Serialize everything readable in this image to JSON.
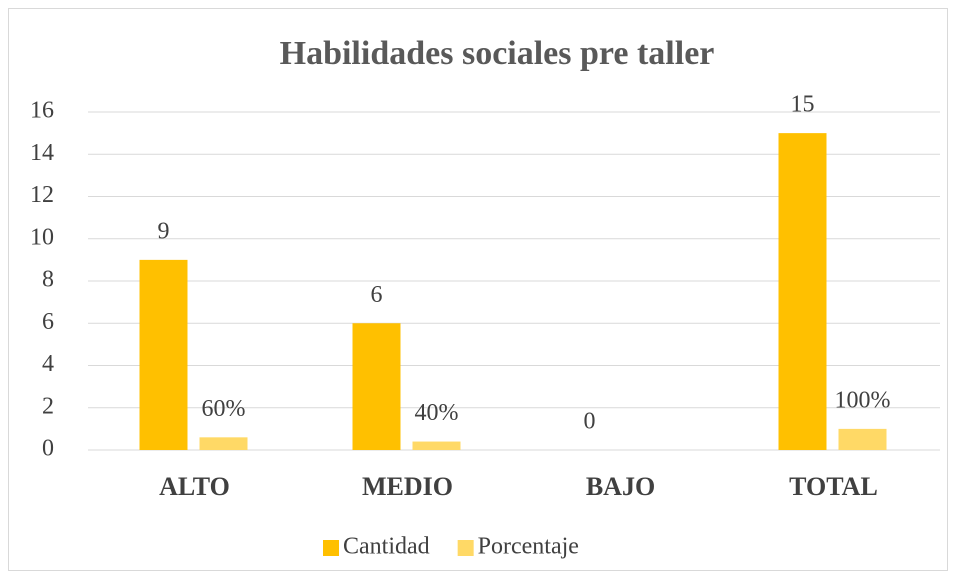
{
  "chart_data": {
    "type": "bar",
    "title": "Habilidades sociales pre taller",
    "categories": [
      "ALTO",
      "MEDIO",
      "BAJO",
      "TOTAL"
    ],
    "series": [
      {
        "name": "Cantidad",
        "color": "#FFC000",
        "values": [
          9,
          6,
          0,
          15
        ]
      },
      {
        "name": "Porcentaje",
        "color": "#FFD966",
        "values": [
          0.6,
          0.4,
          null,
          1
        ],
        "value_labels": [
          "60%",
          "40%",
          null,
          "100%"
        ]
      }
    ],
    "ylim": [
      0,
      16
    ],
    "yticks": [
      0,
      2,
      4,
      6,
      8,
      10,
      12,
      14,
      16
    ],
    "grid": true,
    "legend": "bottom"
  }
}
